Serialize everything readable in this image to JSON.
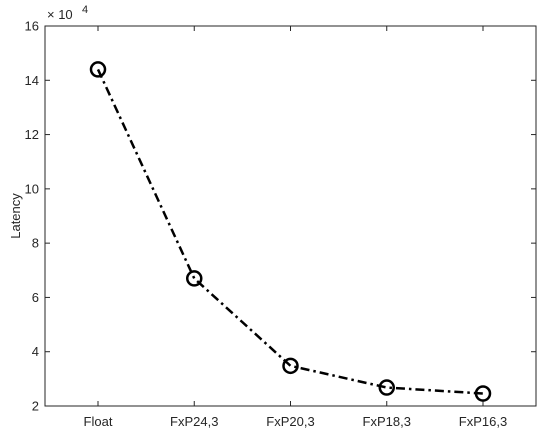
{
  "chart_data": {
    "type": "line",
    "categories": [
      "Float",
      "FxP24,3",
      "FxP20,3",
      "FxP18,3",
      "FxP16,3"
    ],
    "series": [
      {
        "values": [
          144000,
          67000,
          34800,
          26800,
          24600
        ]
      }
    ],
    "title": "",
    "xlabel": "",
    "ylabel": "Latency",
    "ylim": [
      20000,
      160000
    ],
    "yticks": [
      2,
      4,
      6,
      8,
      10,
      12,
      14,
      16
    ],
    "y_scale_multiplier": "× 10",
    "y_scale_exponent": "4",
    "grid": false,
    "legend": false,
    "colors": {
      "line": "#000000",
      "axis": "#262626"
    },
    "line_style": "dash-dot",
    "marker": "open-circle"
  }
}
